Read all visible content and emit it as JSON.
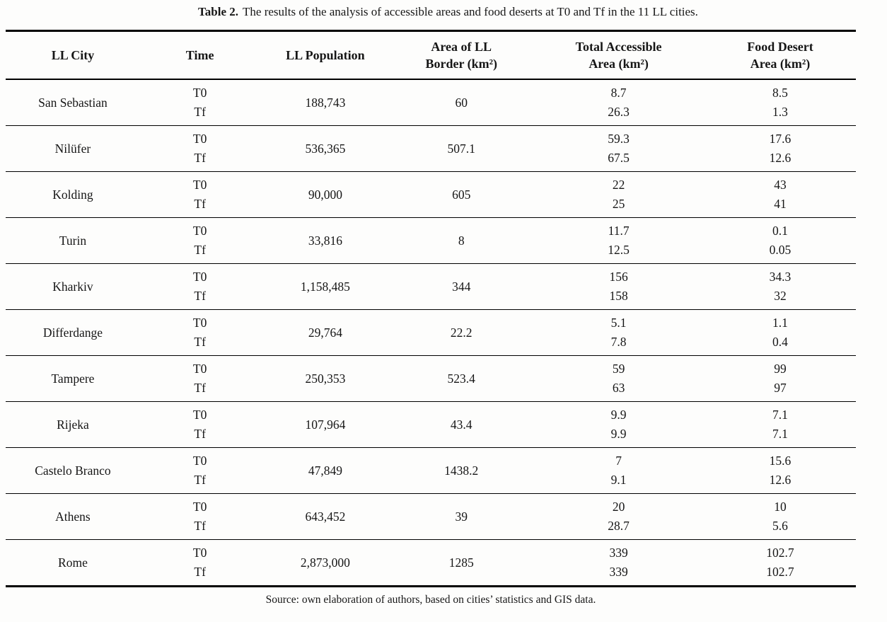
{
  "caption": {
    "label": "Table 2.",
    "text": "The results of the analysis of accessible areas and food deserts at T0 and Tf in the 11 LL cities."
  },
  "table": {
    "headers": [
      "LL City",
      "Time",
      "LL Population",
      "Area of LL\nBorder (km²)",
      "Total Accessible\nArea (km²)",
      "Food Desert\nArea (km²)"
    ],
    "rows": [
      {
        "city": "San Sebastian",
        "times": [
          "T0",
          "Tf"
        ],
        "population": "188,743",
        "border_area": "60",
        "accessible": [
          "8.7",
          "26.3"
        ],
        "food_desert": [
          "8.5",
          "1.3"
        ]
      },
      {
        "city": "Nilüfer",
        "times": [
          "T0",
          "Tf"
        ],
        "population": "536,365",
        "border_area": "507.1",
        "accessible": [
          "59.3",
          "67.5"
        ],
        "food_desert": [
          "17.6",
          "12.6"
        ]
      },
      {
        "city": "Kolding",
        "times": [
          "T0",
          "Tf"
        ],
        "population": "90,000",
        "border_area": "605",
        "accessible": [
          "22",
          "25"
        ],
        "food_desert": [
          "43",
          "41"
        ]
      },
      {
        "city": "Turin",
        "times": [
          "T0",
          "Tf"
        ],
        "population": "33,816",
        "border_area": "8",
        "accessible": [
          "11.7",
          "12.5"
        ],
        "food_desert": [
          "0.1",
          "0.05"
        ]
      },
      {
        "city": "Kharkiv",
        "times": [
          "T0",
          "Tf"
        ],
        "population": "1,158,485",
        "border_area": "344",
        "accessible": [
          "156",
          "158"
        ],
        "food_desert": [
          "34.3",
          "32"
        ]
      },
      {
        "city": "Differdange",
        "times": [
          "T0",
          "Tf"
        ],
        "population": "29,764",
        "border_area": "22.2",
        "accessible": [
          "5.1",
          "7.8"
        ],
        "food_desert": [
          "1.1",
          "0.4"
        ]
      },
      {
        "city": "Tampere",
        "times": [
          "T0",
          "Tf"
        ],
        "population": "250,353",
        "border_area": "523.4",
        "accessible": [
          "59",
          "63"
        ],
        "food_desert": [
          "99",
          "97"
        ]
      },
      {
        "city": "Rijeka",
        "times": [
          "T0",
          "Tf"
        ],
        "population": "107,964",
        "border_area": "43.4",
        "accessible": [
          "9.9",
          "9.9"
        ],
        "food_desert": [
          "7.1",
          "7.1"
        ]
      },
      {
        "city": "Castelo Branco",
        "times": [
          "T0",
          "Tf"
        ],
        "population": "47,849",
        "border_area": "1438.2",
        "accessible": [
          "7",
          "9.1"
        ],
        "food_desert": [
          "15.6",
          "12.6"
        ]
      },
      {
        "city": "Athens",
        "times": [
          "T0",
          "Tf"
        ],
        "population": "643,452",
        "border_area": "39",
        "accessible": [
          "20",
          "28.7"
        ],
        "food_desert": [
          "10",
          "5.6"
        ]
      },
      {
        "city": "Rome",
        "times": [
          "T0",
          "Tf"
        ],
        "population": "2,873,000",
        "border_area": "1285",
        "accessible": [
          "339",
          "339"
        ],
        "food_desert": [
          "102.7",
          "102.7"
        ]
      }
    ]
  },
  "source": "Source: own elaboration of authors, based on cities’ statistics and GIS data.",
  "colors": {
    "text": "#161616",
    "rule": "#000000",
    "background": "#fdfdfc"
  }
}
